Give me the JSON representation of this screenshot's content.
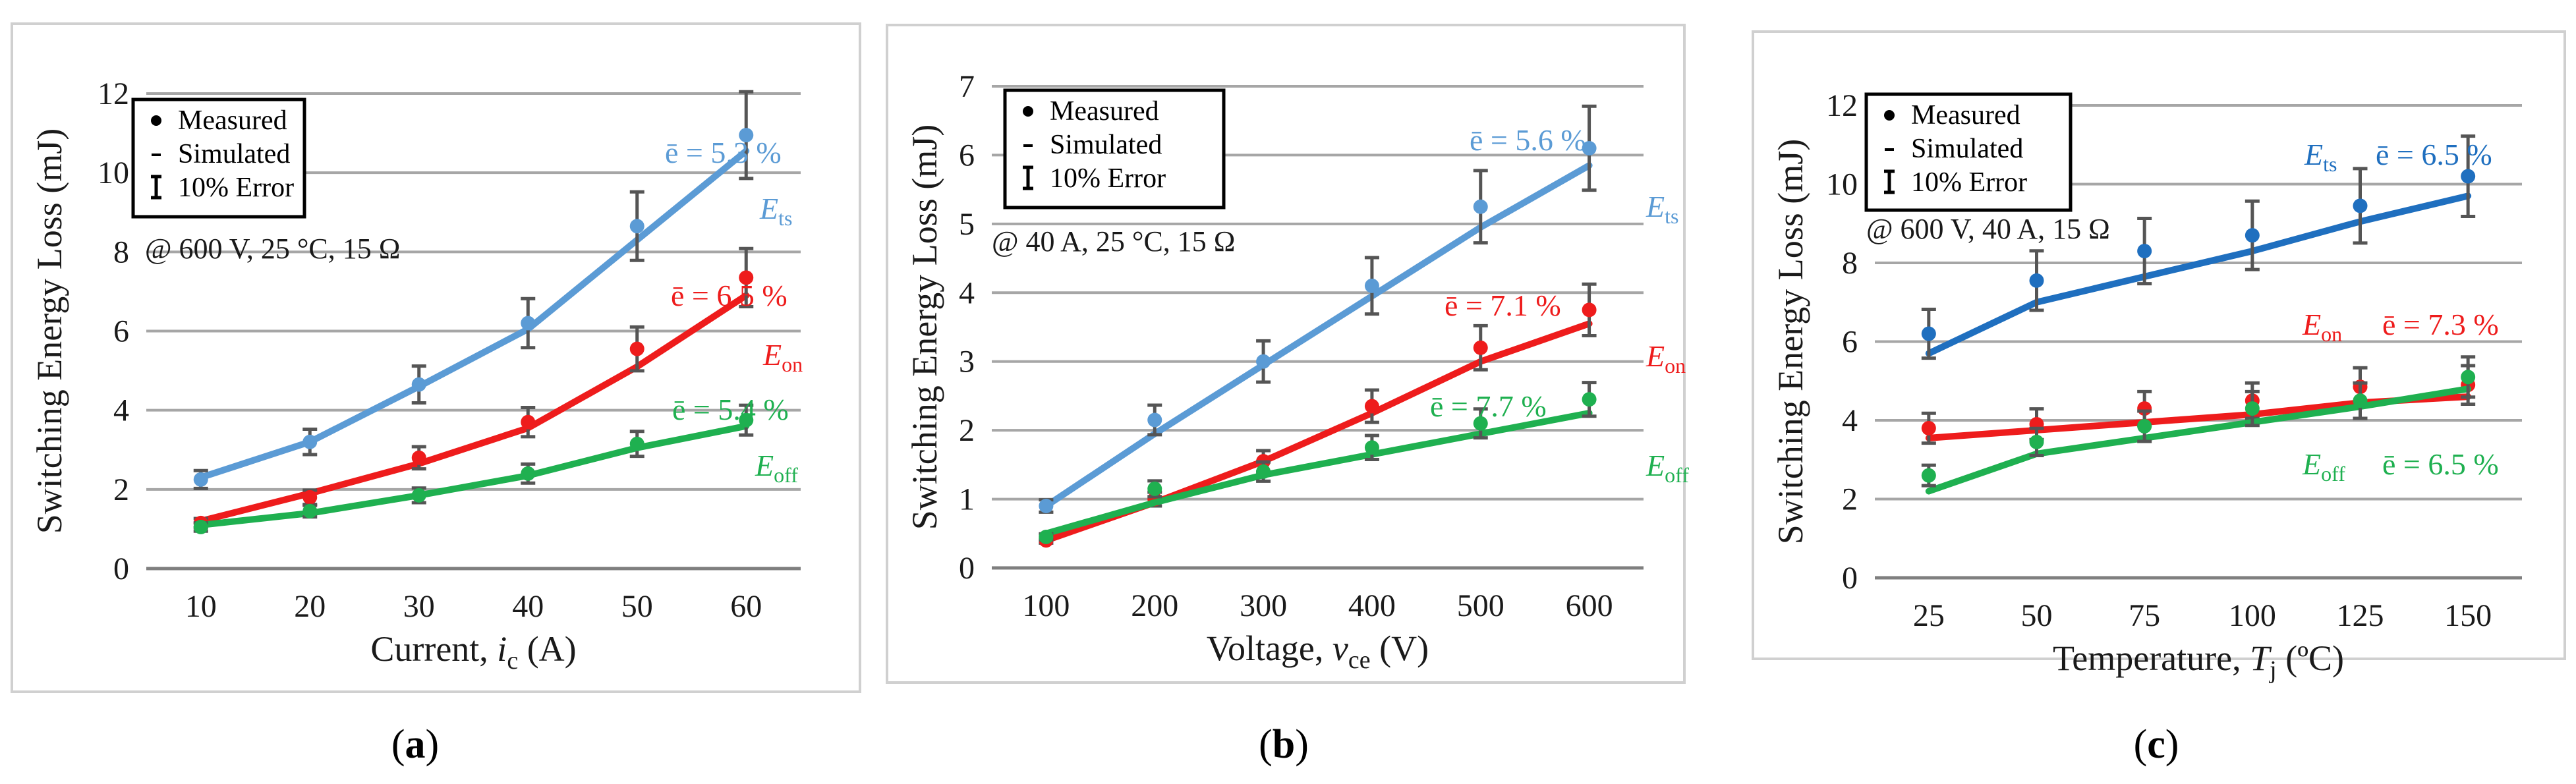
{
  "legend": {
    "measured": "Measured",
    "simulated": "Simulated",
    "error": "10% Error"
  },
  "colors": {
    "ets_a": "#5b9bd5",
    "ets_c": "#1f6fbf",
    "eon": "#ee1c1c",
    "eoff": "#1fb050",
    "err": "#555555",
    "grid": "#a6a6a6",
    "axis": "#7f7f7f",
    "frame": "#d0d0d0"
  },
  "chart_data": [
    {
      "type": "line",
      "id": "a",
      "caption": "(a)",
      "ylabel": "Switching Energy Loss (mJ)",
      "xlabel": {
        "pre": "Current, ",
        "var": "i",
        "sub": "c",
        "post": " (A)"
      },
      "condition": "@ 600 V, 25 °C, 15 Ω",
      "x": [
        10,
        20,
        30,
        40,
        50,
        60
      ],
      "xlim": [
        5,
        65
      ],
      "ylim": [
        0,
        12
      ],
      "yticks": [
        0,
        2,
        4,
        6,
        8,
        10,
        12
      ],
      "series": [
        {
          "name": "Ets",
          "label_main": "E",
          "label_sub": "ts",
          "color_key": "ets_a",
          "error_label": "ē = 5.3 %",
          "measured": [
            2.25,
            3.2,
            4.65,
            6.2,
            8.65,
            10.95
          ],
          "simulated": [
            2.3,
            3.2,
            4.6,
            6.05,
            8.3,
            10.55
          ]
        },
        {
          "name": "Eon",
          "label_main": "E",
          "label_sub": "on",
          "color_key": "eon",
          "error_label": "ē = 6.5 %",
          "measured": [
            1.15,
            1.8,
            2.8,
            3.7,
            5.55,
            7.35
          ],
          "simulated": [
            1.2,
            1.9,
            2.65,
            3.55,
            5.1,
            6.9
          ]
        },
        {
          "name": "Eoff",
          "label_main": "E",
          "label_sub": "off",
          "color_key": "eoff",
          "error_label": "ē = 5.4 %",
          "measured": [
            1.05,
            1.45,
            1.85,
            2.4,
            3.15,
            3.75
          ],
          "simulated": [
            1.1,
            1.4,
            1.85,
            2.35,
            3.05,
            3.6
          ]
        }
      ]
    },
    {
      "type": "line",
      "id": "b",
      "caption": "(b)",
      "ylabel": "Switching Energy Loss (mJ)",
      "xlabel": {
        "pre": "Voltage, ",
        "var": "v",
        "sub": "ce",
        "post": " (V)"
      },
      "condition": "@ 40 A, 25 °C, 15 Ω",
      "x": [
        100,
        200,
        300,
        400,
        500,
        600
      ],
      "xlim": [
        50,
        650
      ],
      "ylim": [
        0,
        7
      ],
      "yticks": [
        0,
        1,
        2,
        3,
        4,
        5,
        6,
        7
      ],
      "series": [
        {
          "name": "Ets",
          "label_main": "E",
          "label_sub": "ts",
          "color_key": "ets_a",
          "error_label": "ē = 5.6 %",
          "measured": [
            0.9,
            2.15,
            3.0,
            4.1,
            5.25,
            6.1
          ],
          "simulated": [
            0.9,
            1.95,
            2.95,
            3.95,
            4.95,
            5.85
          ]
        },
        {
          "name": "Eon",
          "label_main": "E",
          "label_sub": "on",
          "color_key": "eon",
          "error_label": "ē = 7.1 %",
          "measured": [
            0.4,
            1.0,
            1.55,
            2.35,
            3.2,
            3.75
          ],
          "simulated": [
            0.4,
            0.95,
            1.55,
            2.25,
            3.0,
            3.55
          ]
        },
        {
          "name": "Eoff",
          "label_main": "E",
          "label_sub": "off",
          "color_key": "eoff",
          "error_label": "ē = 7.7 %",
          "measured": [
            0.45,
            1.15,
            1.4,
            1.75,
            2.1,
            2.45
          ],
          "simulated": [
            0.5,
            0.95,
            1.35,
            1.65,
            1.95,
            2.25
          ]
        }
      ]
    },
    {
      "type": "line",
      "id": "c",
      "caption": "(c)",
      "ylabel": "Switching Energy Loss (mJ)",
      "xlabel": {
        "pre": "Temperature, ",
        "var": "T",
        "sub": "j",
        "post": " (ºC)"
      },
      "condition": "@ 600 V, 40 A, 15 Ω",
      "x": [
        25,
        50,
        75,
        100,
        125,
        150
      ],
      "xlim": [
        12.5,
        162.5
      ],
      "ylim": [
        0,
        12
      ],
      "yticks": [
        0,
        2,
        4,
        6,
        8,
        10,
        12
      ],
      "series": [
        {
          "name": "Ets",
          "label_main": "E",
          "label_sub": "ts",
          "color_key": "ets_c",
          "error_label": "ē = 6.5 %",
          "measured": [
            6.2,
            7.55,
            8.3,
            8.7,
            9.45,
            10.2
          ],
          "simulated": [
            5.7,
            7.0,
            7.65,
            8.3,
            9.05,
            9.7
          ]
        },
        {
          "name": "Eon",
          "label_main": "E",
          "label_sub": "on",
          "color_key": "eon",
          "error_label": "ē = 7.3 %",
          "measured": [
            3.8,
            3.9,
            4.3,
            4.5,
            4.85,
            4.9
          ],
          "simulated": [
            3.55,
            3.75,
            3.95,
            4.15,
            4.45,
            4.6
          ]
        },
        {
          "name": "Eoff",
          "label_main": "E",
          "label_sub": "off",
          "color_key": "eoff",
          "error_label": "ē = 6.5 %",
          "measured": [
            2.6,
            3.45,
            3.85,
            4.3,
            4.5,
            5.1
          ],
          "simulated": [
            2.2,
            3.15,
            3.55,
            3.95,
            4.35,
            4.8
          ]
        }
      ]
    }
  ]
}
